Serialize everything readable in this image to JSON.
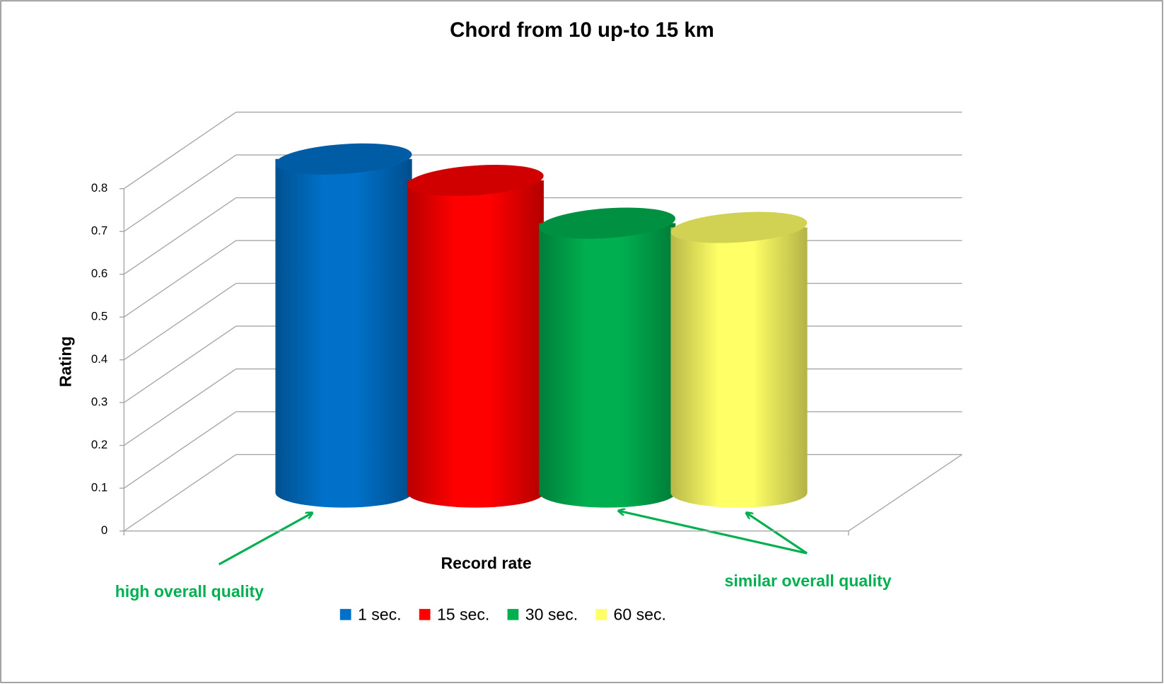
{
  "chart_data": {
    "type": "bar3d",
    "title": "Chord from 10 up-to 15 km",
    "y_label": "Rating",
    "x_label": "Record rate",
    "series": [
      {
        "name": "1 sec.",
        "color": "#0070c8",
        "values": [
          0.78
        ]
      },
      {
        "name": "15 sec.",
        "color": "#ff0000",
        "values": [
          0.73
        ]
      },
      {
        "name": "30 sec.",
        "color": "#00b050",
        "values": [
          0.63
        ]
      },
      {
        "name": "60 sec.",
        "color": "#ffff66",
        "values": [
          0.62
        ]
      }
    ],
    "ylim": [
      0,
      0.8
    ],
    "yticks": [
      0,
      0.1,
      0.2,
      0.3,
      0.4,
      0.5,
      0.6,
      0.7,
      0.8
    ],
    "grid": true,
    "legend": "bottom",
    "annotations": [
      "high overall quality",
      "similar overall quality"
    ]
  }
}
